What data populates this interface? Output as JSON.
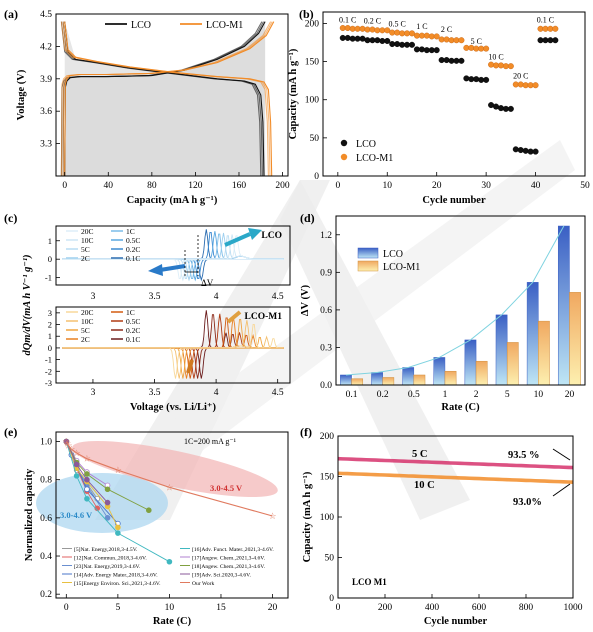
{
  "figure": {
    "watermark_letters": "LE",
    "colors": {
      "lco": "#111111",
      "m1": "#f28c28",
      "m1_fill": "#f5c06a",
      "lco_bar": "#4a74c9",
      "highlight_blue": "#a8d4f0",
      "highlight_red": "#f3b8b8"
    }
  },
  "chart_data": [
    {
      "id": "a",
      "panel_label": "(a)",
      "type": "line",
      "xlabel": "Capacity (mA h g⁻¹)",
      "ylabel": "Voltage (V)",
      "xlim": [
        -8,
        205
      ],
      "ylim": [
        3.0,
        4.5
      ],
      "xticks": [
        0,
        40,
        80,
        120,
        160,
        200
      ],
      "yticks": [
        3.3,
        3.6,
        3.9,
        4.2,
        4.5
      ],
      "series": [
        {
          "name": "LCO",
          "color": "#111111",
          "charge": [
            [
              0,
              3.0
            ],
            [
              0.5,
              3.82
            ],
            [
              2,
              3.88
            ],
            [
              5,
              3.91
            ],
            [
              15,
              3.92
            ],
            [
              40,
              3.92
            ],
            [
              80,
              3.93
            ],
            [
              110,
              3.98
            ],
            [
              140,
              4.08
            ],
            [
              165,
              4.2
            ],
            [
              178,
              4.32
            ],
            [
              184,
              4.43
            ]
          ],
          "discharge": [
            [
              0,
              4.43
            ],
            [
              3,
              4.15
            ],
            [
              10,
              4.08
            ],
            [
              30,
              4.05
            ],
            [
              60,
              4.0
            ],
            [
              100,
              3.95
            ],
            [
              140,
              3.9
            ],
            [
              165,
              3.88
            ],
            [
              175,
              3.85
            ],
            [
              180,
              3.75
            ],
            [
              182,
              3.5
            ],
            [
              183,
              3.0
            ]
          ]
        },
        {
          "name": "LCO-M1",
          "color": "#f28c28",
          "charge": [
            [
              0,
              3.0
            ],
            [
              0.5,
              3.85
            ],
            [
              2,
              3.9
            ],
            [
              5,
              3.93
            ],
            [
              15,
              3.94
            ],
            [
              40,
              3.94
            ],
            [
              80,
              3.95
            ],
            [
              110,
              3.98
            ],
            [
              140,
              4.05
            ],
            [
              170,
              4.18
            ],
            [
              185,
              4.3
            ],
            [
              192,
              4.43
            ]
          ],
          "discharge": [
            [
              0,
              4.43
            ],
            [
              3,
              4.17
            ],
            [
              10,
              4.1
            ],
            [
              30,
              4.06
            ],
            [
              60,
              4.01
            ],
            [
              100,
              3.96
            ],
            [
              140,
              3.92
            ],
            [
              170,
              3.9
            ],
            [
              183,
              3.87
            ],
            [
              187,
              3.8
            ],
            [
              189,
              3.5
            ],
            [
              190,
              3.0
            ]
          ]
        }
      ]
    },
    {
      "id": "b",
      "panel_label": "(b)",
      "type": "scatter",
      "xlabel": "Cycle number",
      "ylabel": "Capacity (mA h g⁻¹)",
      "xlim": [
        -3,
        50
      ],
      "ylim": [
        0,
        215
      ],
      "xticks": [
        0,
        10,
        20,
        30,
        40,
        50
      ],
      "yticks": [
        0,
        50,
        100,
        150,
        200
      ],
      "rate_labels": [
        {
          "text": "0.1 C",
          "x": 2,
          "y": 201
        },
        {
          "text": "0.2 C",
          "x": 7,
          "y": 200
        },
        {
          "text": "0.5 C",
          "x": 12,
          "y": 196
        },
        {
          "text": "1 C",
          "x": 17,
          "y": 193
        },
        {
          "text": "2 C",
          "x": 22,
          "y": 189
        },
        {
          "text": "5 C",
          "x": 28,
          "y": 173
        },
        {
          "text": "10 C",
          "x": 32,
          "y": 153
        },
        {
          "text": "20 C",
          "x": 37,
          "y": 128
        },
        {
          "text": "0.1 C",
          "x": 42,
          "y": 201
        }
      ],
      "series": [
        {
          "name": "LCO",
          "color": "#111111",
          "marker": "circle",
          "x": [
            1,
            2,
            3,
            4,
            5,
            6,
            7,
            8,
            9,
            10,
            11,
            12,
            13,
            14,
            15,
            16,
            17,
            18,
            19,
            20,
            21,
            22,
            23,
            24,
            25,
            26,
            27,
            28,
            29,
            30,
            31,
            32,
            33,
            34,
            35,
            36,
            37,
            38,
            39,
            40,
            41,
            42,
            43,
            44
          ],
          "y": [
            181,
            181,
            180,
            180,
            180,
            178,
            178,
            178,
            177,
            177,
            173,
            173,
            172,
            172,
            172,
            166,
            166,
            165,
            165,
            165,
            152,
            152,
            151,
            151,
            151,
            128,
            127,
            127,
            126,
            126,
            93,
            91,
            89,
            88,
            88,
            35,
            34,
            33,
            32,
            32,
            178,
            178,
            178,
            178
          ]
        },
        {
          "name": "LCO-M1",
          "color": "#f28c28",
          "marker": "circle",
          "x": [
            1,
            2,
            3,
            4,
            5,
            6,
            7,
            8,
            9,
            10,
            11,
            12,
            13,
            14,
            15,
            16,
            17,
            18,
            19,
            20,
            21,
            22,
            23,
            24,
            25,
            26,
            27,
            28,
            29,
            30,
            31,
            32,
            33,
            34,
            35,
            36,
            37,
            38,
            39,
            40,
            41,
            42,
            43,
            44
          ],
          "y": [
            194,
            194,
            193,
            193,
            193,
            192,
            192,
            191,
            191,
            191,
            188,
            188,
            187,
            187,
            187,
            184,
            184,
            184,
            183,
            183,
            179,
            179,
            178,
            178,
            178,
            168,
            168,
            167,
            167,
            167,
            146,
            145,
            145,
            144,
            144,
            120,
            120,
            119,
            119,
            119,
            193,
            193,
            193,
            193
          ]
        }
      ]
    },
    {
      "id": "c",
      "panel_label": "(c)",
      "type": "line",
      "xlabel": "Voltage (vs. Li/Li⁺)",
      "ylabel": "dQm/dV(mA h V⁻¹ g⁻¹)",
      "delta_label": "ΔV",
      "subplots": [
        {
          "title": "LCO",
          "ylim": [
            -1.4,
            1.8
          ],
          "yticks": [
            -1,
            0,
            1
          ],
          "rates": [
            "0.1C",
            "0.2C",
            "0.5C",
            "1C",
            "2C",
            "5C",
            "10C",
            "20C"
          ],
          "legend_left": [
            "20C",
            "10C",
            "5C",
            "2C"
          ],
          "legend_right": [
            "1C",
            "0.5C",
            "0.2C",
            "0.1C"
          ]
        },
        {
          "title": "LCO-M1",
          "ylim": [
            -3,
            3.5
          ],
          "yticks": [
            -3,
            -2,
            -1,
            0,
            1,
            2,
            3
          ],
          "rates": [
            "0.1C",
            "0.2C",
            "0.5C",
            "1C",
            "2C",
            "5C",
            "10C",
            "20C"
          ],
          "legend_left": [
            "20C",
            "10C",
            "5C",
            "2C"
          ],
          "legend_right": [
            "1C",
            "0.5C",
            "0.2C",
            "0.1C"
          ]
        }
      ],
      "xlim": [
        2.7,
        4.6
      ],
      "xticks": [
        3,
        3.5,
        4,
        4.5
      ]
    },
    {
      "id": "d",
      "panel_label": "(d)",
      "type": "bar",
      "xlabel": "Rate (C)",
      "ylabel": "ΔV (V)",
      "ylim": [
        0,
        1.35
      ],
      "yticks": [
        0.0,
        0.3,
        0.6,
        0.9,
        1.2
      ],
      "categories": [
        "0.1",
        "0.2",
        "0.5",
        "1",
        "2",
        "5",
        "10",
        "20"
      ],
      "series": [
        {
          "name": "LCO",
          "color": "#4a74c9",
          "values": [
            0.08,
            0.1,
            0.14,
            0.22,
            0.36,
            0.56,
            0.82,
            1.27
          ]
        },
        {
          "name": "LCO-M1",
          "color": "#f5c06a",
          "values": [
            0.05,
            0.06,
            0.08,
            0.11,
            0.19,
            0.34,
            0.51,
            0.74
          ]
        }
      ]
    },
    {
      "id": "e",
      "panel_label": "(e)",
      "type": "scatter",
      "xlabel": "Rate (C)",
      "ylabel": "Normalized capacity",
      "xlim": [
        -1,
        21.5
      ],
      "ylim": [
        0.18,
        1.05
      ],
      "xticks": [
        0,
        5,
        10,
        15,
        20
      ],
      "yticks": [
        0.2,
        0.4,
        0.6,
        0.8,
        1.0
      ],
      "note": "1C=200 mA g⁻¹",
      "region_labels": [
        "3.0-4.6 V",
        "3.0-4.5 V"
      ],
      "legend": [
        "[5]Nat. Energy,2018,3-4.5V.",
        "[12]Nat. Commun.,2018,3-4.6V.",
        "[23]Nat. Energy,2019,3-4.6V.",
        "[14]Adv. Energy Mater.,2018,3-4.6V.",
        "[15]Energy Environ. Sci.,2021,3-4.6V.",
        "[16]Adv. Funct. Mater.,2021,3-4.6V.",
        "[17]Angew. Chem.,2021,3-4.6V.",
        "[18]Angew. Chem.,2021,3-4.6V.",
        "[19]Adv. Sci.2020,3-4.6V.",
        "Our Work"
      ],
      "series": [
        {
          "name": "[5]",
          "color": "#999999",
          "x": [
            0,
            1,
            2,
            3
          ],
          "y": [
            1.0,
            0.85,
            0.78,
            0.7
          ]
        },
        {
          "name": "[12]",
          "color": "#e06060",
          "x": [
            0,
            1,
            2,
            3
          ],
          "y": [
            1.0,
            0.86,
            0.74,
            0.65
          ]
        },
        {
          "name": "[23]",
          "color": "#6a8fd0",
          "x": [
            0,
            0.5,
            1,
            2,
            4
          ],
          "y": [
            1.0,
            0.93,
            0.87,
            0.77,
            0.6
          ]
        },
        {
          "name": "[14]",
          "color": "#4a74c9",
          "x": [
            0,
            0.5,
            1,
            2,
            5
          ],
          "y": [
            1.0,
            0.93,
            0.87,
            0.75,
            0.57
          ]
        },
        {
          "name": "[15]",
          "color": "#e8c040",
          "x": [
            0,
            1,
            2,
            4,
            5
          ],
          "y": [
            1.0,
            0.86,
            0.79,
            0.66,
            0.55
          ]
        },
        {
          "name": "[16]",
          "color": "#40b8c0",
          "x": [
            0,
            1,
            2,
            5,
            10
          ],
          "y": [
            1.0,
            0.82,
            0.7,
            0.52,
            0.37
          ]
        },
        {
          "name": "[17]",
          "color": "#b080d0",
          "x": [
            0,
            1,
            2,
            4
          ],
          "y": [
            1.0,
            0.9,
            0.84,
            0.77
          ]
        },
        {
          "name": "[18]",
          "color": "#80a040",
          "x": [
            0,
            1,
            2,
            4,
            8
          ],
          "y": [
            1.0,
            0.89,
            0.83,
            0.75,
            0.64
          ]
        },
        {
          "name": "[19]",
          "color": "#8a5a9a",
          "x": [
            0,
            1,
            2,
            4
          ],
          "y": [
            1.0,
            0.88,
            0.8,
            0.68
          ]
        },
        {
          "name": "Our Work",
          "color": "#e07a5f",
          "x": [
            0,
            0.1,
            0.2,
            0.5,
            1,
            2,
            5,
            10,
            20
          ],
          "y": [
            1.0,
            0.99,
            0.98,
            0.96,
            0.94,
            0.91,
            0.85,
            0.76,
            0.61
          ]
        }
      ]
    },
    {
      "id": "f",
      "panel_label": "(f)",
      "type": "line",
      "xlabel": "Cycle number",
      "ylabel": "Capacity (mA h g⁻¹)",
      "xlim": [
        0,
        1000
      ],
      "ylim": [
        0,
        200
      ],
      "xticks": [
        0,
        200,
        400,
        600,
        800,
        1000
      ],
      "yticks": [
        0,
        50,
        100,
        150,
        200
      ],
      "annotation": "LCO M1",
      "series": [
        {
          "name": "5 C",
          "color": "#d6336c",
          "retention": "93.5 %",
          "start": 172,
          "end": 161
        },
        {
          "name": "10 C",
          "color": "#f28c28",
          "retention": "93.0%",
          "start": 154,
          "end": 143
        }
      ]
    }
  ]
}
